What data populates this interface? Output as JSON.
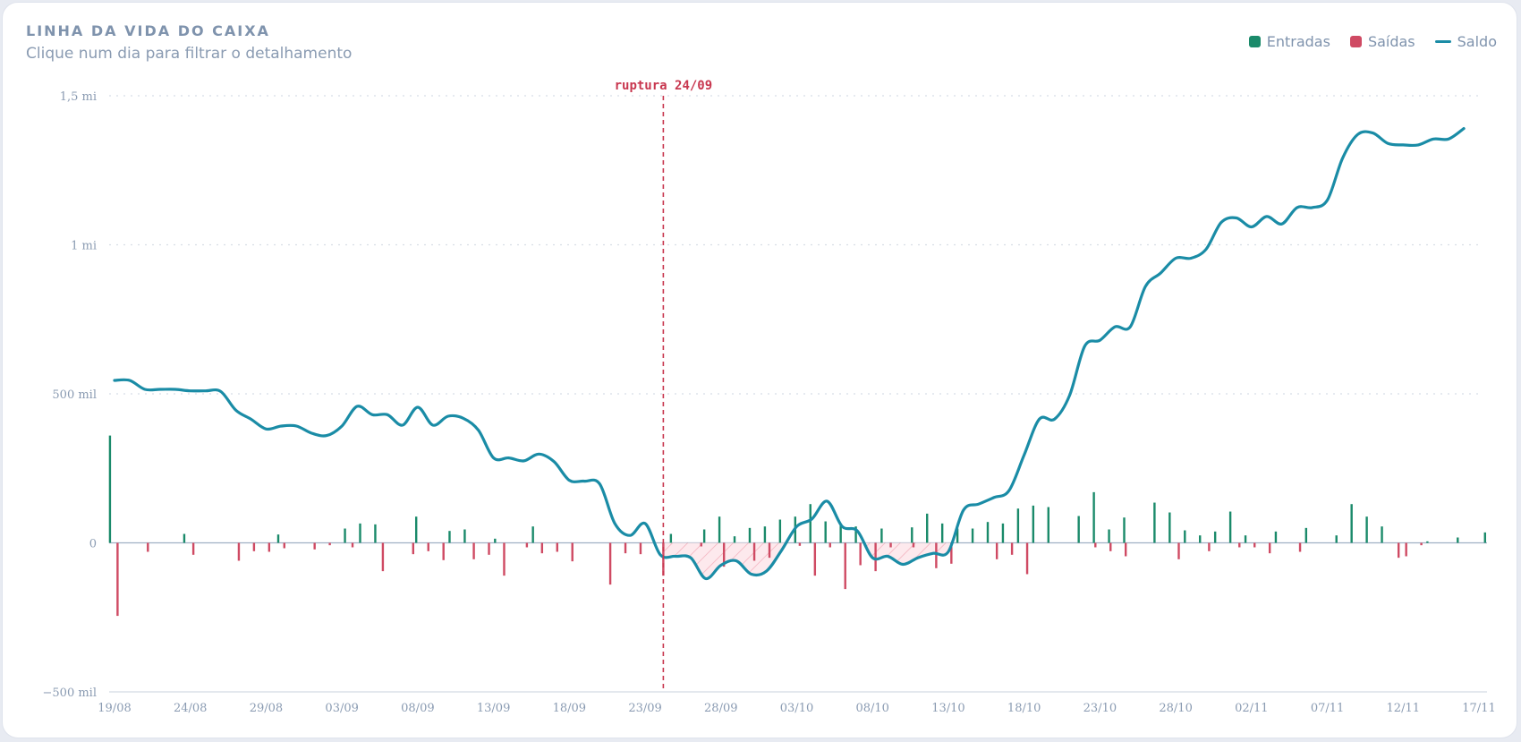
{
  "header": {
    "title": "LINHA DA VIDA DO CAIXA",
    "subtitle": "Clique num dia para filtrar o detalhamento"
  },
  "legend": {
    "inflow_label": "Entradas",
    "outflow_label": "Saídas",
    "balance_label": "Saldo"
  },
  "colors": {
    "inflow": "#1a8a6a",
    "outflow": "#cf4a63",
    "balance": "#1a8ca6",
    "rupture": "#c8374f",
    "grid": "#d8dde6",
    "axis": "#9fb0c4"
  },
  "chart_data": {
    "type": "line",
    "start_date": "19/08",
    "end_date": "17/11",
    "ylim": [
      -500000,
      1500000
    ],
    "y_ticks": [
      {
        "value": 1500000,
        "label": "1,5 mi"
      },
      {
        "value": 1000000,
        "label": "1 mi"
      },
      {
        "value": 500000,
        "label": "500 mil"
      },
      {
        "value": 0,
        "label": "0"
      },
      {
        "value": -500000,
        "label": "−500 mil"
      }
    ],
    "x_ticks": [
      {
        "day": 0,
        "label": "19/08"
      },
      {
        "day": 5,
        "label": "24/08"
      },
      {
        "day": 10,
        "label": "29/08"
      },
      {
        "day": 15,
        "label": "03/09"
      },
      {
        "day": 20,
        "label": "08/09"
      },
      {
        "day": 25,
        "label": "13/09"
      },
      {
        "day": 30,
        "label": "18/09"
      },
      {
        "day": 35,
        "label": "23/09"
      },
      {
        "day": 40,
        "label": "28/09"
      },
      {
        "day": 45,
        "label": "03/10"
      },
      {
        "day": 50,
        "label": "08/10"
      },
      {
        "day": 55,
        "label": "13/10"
      },
      {
        "day": 60,
        "label": "18/10"
      },
      {
        "day": 65,
        "label": "23/10"
      },
      {
        "day": 70,
        "label": "28/10"
      },
      {
        "day": 75,
        "label": "02/11"
      },
      {
        "day": 80,
        "label": "07/11"
      },
      {
        "day": 85,
        "label": "12/11"
      },
      {
        "day": 90,
        "label": "17/11"
      }
    ],
    "rupture": {
      "day": 36.2,
      "label": "ruptura 24/09"
    },
    "series": [
      {
        "name": "Saldo",
        "points": [
          [
            0,
            545000
          ],
          [
            1,
            545000
          ],
          [
            2,
            515000
          ],
          [
            3,
            515000
          ],
          [
            4,
            515000
          ],
          [
            5,
            510000
          ],
          [
            6,
            510000
          ],
          [
            7,
            508000
          ],
          [
            8,
            445000
          ],
          [
            9,
            415000
          ],
          [
            10,
            382000
          ],
          [
            11,
            392000
          ],
          [
            12,
            392000
          ],
          [
            13,
            368000
          ],
          [
            14,
            360000
          ],
          [
            15,
            392000
          ],
          [
            16,
            458000
          ],
          [
            17,
            430000
          ],
          [
            18,
            430000
          ],
          [
            19,
            395000
          ],
          [
            20,
            455000
          ],
          [
            21,
            395000
          ],
          [
            22,
            425000
          ],
          [
            23,
            418000
          ],
          [
            24,
            378000
          ],
          [
            25,
            285000
          ],
          [
            26,
            285000
          ],
          [
            27,
            275000
          ],
          [
            28,
            298000
          ],
          [
            29,
            272000
          ],
          [
            30,
            210000
          ],
          [
            31,
            207000
          ],
          [
            32,
            198000
          ],
          [
            33,
            65000
          ],
          [
            34,
            25000
          ],
          [
            35,
            65000
          ],
          [
            36,
            -40000
          ],
          [
            37,
            -45000
          ],
          [
            38,
            -50000
          ],
          [
            39,
            -120000
          ],
          [
            40,
            -75000
          ],
          [
            41,
            -60000
          ],
          [
            42,
            -105000
          ],
          [
            43,
            -95000
          ],
          [
            44,
            -25000
          ],
          [
            45,
            55000
          ],
          [
            46,
            80000
          ],
          [
            47,
            140000
          ],
          [
            48,
            55000
          ],
          [
            49,
            40000
          ],
          [
            50,
            -50000
          ],
          [
            51,
            -45000
          ],
          [
            52,
            -72000
          ],
          [
            53,
            -50000
          ],
          [
            54,
            -35000
          ],
          [
            55,
            -30000
          ],
          [
            56,
            110000
          ],
          [
            57,
            130000
          ],
          [
            58,
            152000
          ],
          [
            59,
            175000
          ],
          [
            60,
            295000
          ],
          [
            61,
            415000
          ],
          [
            62,
            415000
          ],
          [
            63,
            495000
          ],
          [
            64,
            660000
          ],
          [
            65,
            680000
          ],
          [
            66,
            725000
          ],
          [
            67,
            725000
          ],
          [
            68,
            860000
          ],
          [
            69,
            905000
          ],
          [
            70,
            955000
          ],
          [
            71,
            955000
          ],
          [
            72,
            985000
          ],
          [
            73,
            1075000
          ],
          [
            74,
            1090000
          ],
          [
            75,
            1060000
          ],
          [
            76,
            1095000
          ],
          [
            77,
            1070000
          ],
          [
            78,
            1125000
          ],
          [
            79,
            1125000
          ],
          [
            80,
            1150000
          ],
          [
            81,
            1290000
          ],
          [
            82,
            1370000
          ],
          [
            83,
            1375000
          ],
          [
            84,
            1340000
          ],
          [
            85,
            1335000
          ],
          [
            86,
            1335000
          ],
          [
            87,
            1355000
          ],
          [
            88,
            1355000
          ],
          [
            89,
            1390000
          ]
        ]
      },
      {
        "name": "Entradas",
        "points": [
          [
            -0.3,
            360000
          ],
          [
            4.6,
            30000
          ],
          [
            10.8,
            28000
          ],
          [
            15.2,
            48000
          ],
          [
            16.2,
            65000
          ],
          [
            17.2,
            62000
          ],
          [
            19.9,
            88000
          ],
          [
            22.1,
            40000
          ],
          [
            23.1,
            45000
          ],
          [
            25.1,
            14000
          ],
          [
            27.6,
            55000
          ],
          [
            36.7,
            30000
          ],
          [
            38.9,
            45000
          ],
          [
            39.9,
            88000
          ],
          [
            40.9,
            22000
          ],
          [
            41.9,
            50000
          ],
          [
            42.9,
            55000
          ],
          [
            43.9,
            78000
          ],
          [
            44.9,
            88000
          ],
          [
            45.9,
            130000
          ],
          [
            46.9,
            72000
          ],
          [
            47.9,
            58000
          ],
          [
            48.9,
            55000
          ],
          [
            50.6,
            48000
          ],
          [
            52.6,
            52000
          ],
          [
            53.6,
            98000
          ],
          [
            54.6,
            65000
          ],
          [
            55.6,
            48000
          ],
          [
            56.6,
            48000
          ],
          [
            57.6,
            70000
          ],
          [
            58.6,
            65000
          ],
          [
            59.6,
            115000
          ],
          [
            60.6,
            125000
          ],
          [
            61.6,
            120000
          ],
          [
            63.6,
            90000
          ],
          [
            64.6,
            170000
          ],
          [
            65.6,
            45000
          ],
          [
            66.6,
            85000
          ],
          [
            68.6,
            135000
          ],
          [
            69.6,
            102000
          ],
          [
            70.6,
            42000
          ],
          [
            71.6,
            25000
          ],
          [
            72.6,
            38000
          ],
          [
            73.6,
            105000
          ],
          [
            74.6,
            25000
          ],
          [
            76.6,
            38000
          ],
          [
            78.6,
            50000
          ],
          [
            80.6,
            25000
          ],
          [
            81.6,
            130000
          ],
          [
            82.6,
            88000
          ],
          [
            83.6,
            55000
          ],
          [
            86.6,
            5000
          ],
          [
            88.6,
            18000
          ],
          [
            90.4,
            35000
          ]
        ]
      },
      {
        "name": "Saídas",
        "points": [
          [
            0.2,
            -245000
          ],
          [
            2.2,
            -30000
          ],
          [
            5.2,
            -40000
          ],
          [
            8.2,
            -60000
          ],
          [
            9.2,
            -28000
          ],
          [
            10.2,
            -30000
          ],
          [
            11.2,
            -18000
          ],
          [
            13.2,
            -22000
          ],
          [
            14.2,
            -8000
          ],
          [
            15.7,
            -15000
          ],
          [
            17.7,
            -95000
          ],
          [
            19.7,
            -38000
          ],
          [
            20.7,
            -28000
          ],
          [
            21.7,
            -58000
          ],
          [
            23.7,
            -55000
          ],
          [
            24.7,
            -40000
          ],
          [
            25.7,
            -110000
          ],
          [
            27.2,
            -15000
          ],
          [
            28.2,
            -35000
          ],
          [
            29.2,
            -30000
          ],
          [
            30.2,
            -62000
          ],
          [
            32.7,
            -140000
          ],
          [
            33.7,
            -35000
          ],
          [
            34.7,
            -38000
          ],
          [
            36.2,
            -110000
          ],
          [
            38.7,
            -12000
          ],
          [
            40.2,
            -80000
          ],
          [
            42.2,
            -60000
          ],
          [
            43.2,
            -50000
          ],
          [
            45.2,
            -10000
          ],
          [
            46.2,
            -110000
          ],
          [
            47.2,
            -15000
          ],
          [
            48.2,
            -155000
          ],
          [
            49.2,
            -75000
          ],
          [
            50.2,
            -95000
          ],
          [
            51.2,
            -15000
          ],
          [
            52.7,
            -15000
          ],
          [
            54.2,
            -85000
          ],
          [
            55.2,
            -70000
          ],
          [
            58.2,
            -55000
          ],
          [
            59.2,
            -40000
          ],
          [
            60.2,
            -105000
          ],
          [
            64.7,
            -15000
          ],
          [
            65.7,
            -28000
          ],
          [
            66.7,
            -45000
          ],
          [
            70.2,
            -55000
          ],
          [
            72.2,
            -28000
          ],
          [
            74.2,
            -15000
          ],
          [
            75.2,
            -15000
          ],
          [
            76.2,
            -35000
          ],
          [
            78.2,
            -30000
          ],
          [
            84.7,
            -50000
          ],
          [
            85.2,
            -45000
          ],
          [
            86.2,
            -8000
          ]
        ]
      }
    ]
  }
}
